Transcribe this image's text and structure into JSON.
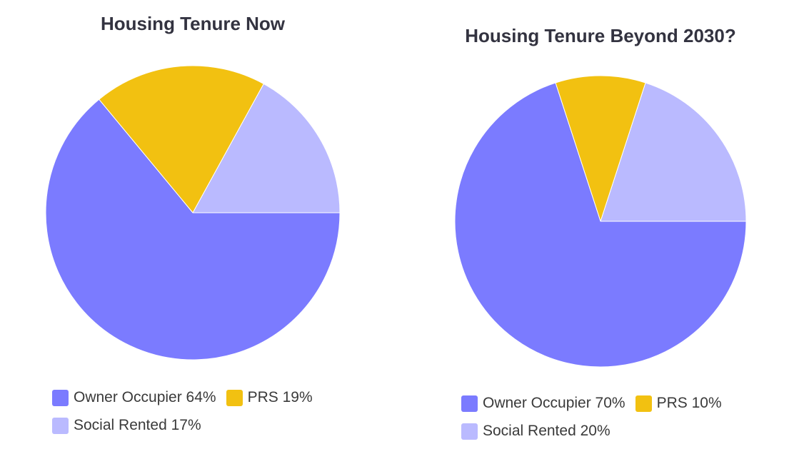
{
  "chart_data": [
    {
      "type": "pie",
      "title": "Housing Tenure Now",
      "categories": [
        "Owner Occupier",
        "PRS",
        "Social Rented"
      ],
      "values": [
        64,
        19,
        17
      ],
      "labels": [
        "Owner Occupier 64%",
        "PRS 19%",
        "Social Rented 17%"
      ],
      "colors": [
        "#7b7bff",
        "#f2c111",
        "#babaff"
      ],
      "legend_position": "bottom"
    },
    {
      "type": "pie",
      "title": "Housing Tenure Beyond 2030?",
      "categories": [
        "Owner Occupier",
        "PRS",
        "Social Rented"
      ],
      "values": [
        70,
        10,
        20
      ],
      "labels": [
        "Owner Occupier 70%",
        "PRS 10%",
        "Social Rented 20%"
      ],
      "colors": [
        "#7b7bff",
        "#f2c111",
        "#babaff"
      ],
      "legend_position": "bottom"
    }
  ]
}
